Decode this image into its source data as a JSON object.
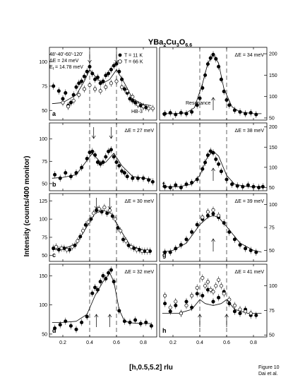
{
  "figure": {
    "title_main": "YBa",
    "title_sub1": "2",
    "title_mid": "Cu",
    "title_sub2": "3",
    "title_end": "O",
    "title_sub3": "6.6",
    "xlabel": "[h,0.5,5.2] rlu",
    "ylabel": "Intensity (counts/400 monitor)",
    "caption_line1": "Figure 10",
    "caption_line2": "Dai et al.",
    "legend_info": [
      "48'-40'-60'-120'",
      "ΔE = 24 meV",
      "E",
      "f",
      " = 14.78 meV"
    ],
    "legend_series": [
      "T = 11 K",
      "T = 66 K"
    ],
    "instrument": "HB-3",
    "resonance_label": "Resonance"
  },
  "chart_data": [
    {
      "panel": "a",
      "type": "scatter",
      "energy_label": "ΔE = 24 meV",
      "xlim": [
        0.1,
        0.9
      ],
      "ylim": [
        40,
        115
      ],
      "yticks": [
        50,
        75,
        100
      ],
      "xticks": [
        0.2,
        0.4,
        0.6,
        0.8
      ],
      "dashed_x": [
        0.4,
        0.6
      ],
      "arrows_down": [
        0.4,
        0.6
      ],
      "series": [
        {
          "name": "T = 11 K",
          "marker": "filled",
          "x": [
            0.13,
            0.17,
            0.2,
            0.22,
            0.24,
            0.26,
            0.28,
            0.3,
            0.32,
            0.34,
            0.36,
            0.38,
            0.4,
            0.42,
            0.44,
            0.46,
            0.48,
            0.5,
            0.52,
            0.54,
            0.56,
            0.58,
            0.6,
            0.62,
            0.64,
            0.66,
            0.68,
            0.7,
            0.72,
            0.74,
            0.76,
            0.78,
            0.8,
            0.82
          ],
          "y": [
            75,
            70,
            62,
            68,
            55,
            58,
            66,
            74,
            78,
            80,
            85,
            90,
            95,
            88,
            82,
            84,
            78,
            80,
            86,
            88,
            92,
            96,
            98,
            90,
            82,
            72,
            68,
            62,
            60,
            58,
            56,
            55,
            54,
            53
          ]
        },
        {
          "name": "T = 66 K",
          "marker": "open",
          "x": [
            0.2,
            0.24,
            0.28,
            0.32,
            0.36,
            0.4,
            0.44,
            0.48,
            0.52,
            0.56,
            0.6,
            0.64,
            0.68,
            0.72,
            0.76,
            0.8,
            0.84,
            0.87
          ],
          "y": [
            58,
            54,
            60,
            66,
            72,
            76,
            72,
            70,
            74,
            78,
            80,
            74,
            70,
            64,
            56,
            54,
            52,
            52
          ]
        }
      ],
      "fit_x": [
        0.12,
        0.2,
        0.3,
        0.36,
        0.4,
        0.46,
        0.5,
        0.55,
        0.6,
        0.66,
        0.72,
        0.8,
        0.86
      ],
      "fit_y": [
        57,
        58,
        66,
        80,
        92,
        82,
        78,
        82,
        92,
        78,
        62,
        56,
        55
      ]
    },
    {
      "panel": "b",
      "type": "scatter",
      "energy_label": "ΔE = 27 meV",
      "xlim": [
        0.1,
        0.9
      ],
      "ylim": [
        42,
        118
      ],
      "yticks": [
        50,
        75,
        100
      ],
      "xticks": [
        0.2,
        0.4,
        0.6,
        0.8
      ],
      "dashed_x": [
        0.4,
        0.6
      ],
      "arrows_down": [
        0.43,
        0.56
      ],
      "series": [
        {
          "name": "T = 11 K",
          "marker": "filled",
          "x": [
            0.14,
            0.18,
            0.22,
            0.26,
            0.3,
            0.34,
            0.38,
            0.4,
            0.42,
            0.44,
            0.46,
            0.48,
            0.5,
            0.52,
            0.54,
            0.56,
            0.58,
            0.6,
            0.62,
            0.64,
            0.66,
            0.68,
            0.72,
            0.76,
            0.8,
            0.84,
            0.87
          ],
          "y": [
            60,
            56,
            62,
            58,
            62,
            68,
            78,
            85,
            86,
            82,
            74,
            72,
            74,
            80,
            86,
            88,
            80,
            74,
            70,
            64,
            62,
            58,
            56,
            56,
            56,
            54,
            52
          ]
        }
      ],
      "fit_x": [
        0.12,
        0.2,
        0.3,
        0.36,
        0.42,
        0.48,
        0.5,
        0.52,
        0.58,
        0.64,
        0.72,
        0.8,
        0.86
      ],
      "fit_y": [
        56,
        57,
        60,
        72,
        84,
        74,
        73,
        74,
        84,
        70,
        58,
        56,
        55
      ]
    },
    {
      "panel": "c",
      "type": "scatter",
      "energy_label": "ΔE = 30 meV",
      "xlim": [
        0.1,
        0.9
      ],
      "ylim": [
        42,
        135
      ],
      "yticks": [
        50,
        75,
        100,
        125
      ],
      "xticks": [
        0.2,
        0.4,
        0.6,
        0.8
      ],
      "dashed_x": [
        0.4,
        0.6
      ],
      "arrows_down": [
        0.45,
        0.55
      ],
      "series": [
        {
          "name": "T = 11 K",
          "marker": "filled",
          "x": [
            0.13,
            0.17,
            0.21,
            0.25,
            0.29,
            0.33,
            0.37,
            0.41,
            0.45,
            0.49,
            0.53,
            0.57,
            0.61,
            0.65,
            0.69,
            0.73,
            0.77,
            0.81,
            0.85
          ],
          "y": [
            60,
            58,
            60,
            58,
            64,
            76,
            92,
            100,
            112,
            110,
            108,
            104,
            88,
            72,
            64,
            60,
            58,
            56,
            56
          ]
        },
        {
          "name": "T = 66 K",
          "marker": "open",
          "x": [
            0.15,
            0.19,
            0.23,
            0.27,
            0.31,
            0.35,
            0.39,
            0.43,
            0.47,
            0.51,
            0.55,
            0.59,
            0.63,
            0.67,
            0.71,
            0.75,
            0.79,
            0.83
          ],
          "y": [
            62,
            60,
            58,
            62,
            70,
            84,
            96,
            108,
            114,
            116,
            112,
            100,
            84,
            70,
            62,
            58,
            56,
            56
          ]
        }
      ],
      "fit_x": [
        0.12,
        0.2,
        0.3,
        0.38,
        0.44,
        0.5,
        0.56,
        0.62,
        0.7,
        0.8,
        0.86
      ],
      "fit_y": [
        58,
        59,
        66,
        90,
        108,
        112,
        108,
        88,
        64,
        57,
        56
      ]
    },
    {
      "panel": "d",
      "type": "scatter",
      "energy_label": "ΔE = 32 meV",
      "xlim": [
        0.1,
        0.9
      ],
      "ylim": [
        45,
        170
      ],
      "yticks": [
        50,
        100,
        150
      ],
      "xticks": [
        0.2,
        0.4,
        0.6,
        0.8
      ],
      "dashed_x": [
        0.4,
        0.6
      ],
      "arrows_up": [
        0.45,
        0.55
      ],
      "series": [
        {
          "name": "T = 11 K",
          "marker": "filled",
          "x": [
            0.14,
            0.18,
            0.22,
            0.26,
            0.3,
            0.34,
            0.38,
            0.42,
            0.44,
            0.46,
            0.48,
            0.5,
            0.52,
            0.54,
            0.56,
            0.58,
            0.62,
            0.66,
            0.7,
            0.74,
            0.78,
            0.82,
            0.86
          ],
          "y": [
            60,
            66,
            72,
            64,
            58,
            70,
            80,
            120,
            130,
            126,
            140,
            150,
            145,
            155,
            160,
            140,
            90,
            72,
            70,
            74,
            68,
            70,
            64
          ]
        }
      ],
      "fit_x": [
        0.12,
        0.2,
        0.3,
        0.38,
        0.44,
        0.5,
        0.55,
        0.58,
        0.62,
        0.66,
        0.72,
        0.8,
        0.86
      ],
      "fit_y": [
        70,
        70,
        72,
        84,
        116,
        140,
        155,
        140,
        92,
        72,
        69,
        68,
        68
      ]
    },
    {
      "panel": "e",
      "type": "scatter",
      "energy_label": "ΔE = 34 meV",
      "xlim": [
        0.1,
        0.9
      ],
      "ylim": [
        45,
        215
      ],
      "yticks": [
        50,
        100,
        150,
        200
      ],
      "xticks": [
        0.2,
        0.4,
        0.6,
        0.8
      ],
      "dashed_x": [
        0.4,
        0.6
      ],
      "arrows_up": [
        0.5
      ],
      "series": [
        {
          "name": "T = 11 K",
          "marker": "filled",
          "x": [
            0.14,
            0.18,
            0.22,
            0.26,
            0.3,
            0.34,
            0.38,
            0.4,
            0.42,
            0.44,
            0.46,
            0.48,
            0.5,
            0.52,
            0.54,
            0.56,
            0.58,
            0.6,
            0.62,
            0.66,
            0.7,
            0.74,
            0.78,
            0.82
          ],
          "y": [
            60,
            62,
            58,
            62,
            60,
            64,
            80,
            96,
            120,
            150,
            176,
            190,
            198,
            188,
            170,
            140,
            112,
            92,
            80,
            68,
            64,
            60,
            62,
            58
          ]
        }
      ],
      "fit_x": [
        0.12,
        0.22,
        0.3,
        0.36,
        0.42,
        0.46,
        0.5,
        0.54,
        0.58,
        0.64,
        0.7,
        0.8,
        0.86
      ],
      "fit_y": [
        60,
        60,
        62,
        74,
        130,
        178,
        198,
        178,
        118,
        76,
        64,
        60,
        60
      ]
    },
    {
      "panel": "f",
      "type": "scatter",
      "energy_label": "ΔE = 38 meV",
      "xlim": [
        0.1,
        0.9
      ],
      "ylim": [
        42,
        210
      ],
      "yticks": [
        50,
        100,
        150,
        200
      ],
      "xticks": [
        0.2,
        0.4,
        0.6,
        0.8
      ],
      "dashed_x": [
        0.4,
        0.6
      ],
      "arrows_up": [
        0.5
      ],
      "series": [
        {
          "name": "T = 11 K",
          "marker": "filled",
          "x": [
            0.14,
            0.18,
            0.22,
            0.26,
            0.3,
            0.34,
            0.38,
            0.42,
            0.44,
            0.46,
            0.48,
            0.5,
            0.52,
            0.54,
            0.56,
            0.6,
            0.64,
            0.68,
            0.72,
            0.76,
            0.8,
            0.84,
            0.87
          ],
          "y": [
            52,
            50,
            56,
            50,
            58,
            62,
            70,
            96,
            112,
            130,
            140,
            136,
            120,
            108,
            90,
            70,
            58,
            54,
            52,
            56,
            52,
            50,
            52
          ]
        }
      ],
      "fit_x": [
        0.12,
        0.24,
        0.34,
        0.4,
        0.46,
        0.5,
        0.54,
        0.6,
        0.66,
        0.76,
        0.86
      ],
      "fit_y": [
        52,
        52,
        58,
        80,
        128,
        140,
        128,
        80,
        58,
        52,
        52
      ]
    },
    {
      "panel": "g",
      "type": "scatter",
      "energy_label": "ΔE = 39 meV",
      "xlim": [
        0.1,
        0.9
      ],
      "ylim": [
        38,
        112
      ],
      "yticks": [
        50,
        75,
        100
      ],
      "xticks": [
        0.2,
        0.4,
        0.6,
        0.8
      ],
      "dashed_x": [
        0.4,
        0.6
      ],
      "arrows_up": [
        0.5
      ],
      "series": [
        {
          "name": "T = 11 K",
          "marker": "filled",
          "x": [
            0.14,
            0.18,
            0.22,
            0.26,
            0.3,
            0.34,
            0.38,
            0.42,
            0.46,
            0.5,
            0.54,
            0.58,
            0.62,
            0.66,
            0.7,
            0.74,
            0.78,
            0.82
          ],
          "y": [
            48,
            48,
            52,
            56,
            62,
            70,
            78,
            84,
            88,
            90,
            86,
            80,
            70,
            62,
            56,
            52,
            50,
            48
          ]
        },
        {
          "name": "T = 66 K",
          "marker": "open",
          "x": [
            0.42,
            0.46,
            0.5,
            0.54
          ],
          "y": [
            86,
            92,
            94,
            88
          ]
        }
      ],
      "fit_x": [
        0.12,
        0.2,
        0.3,
        0.4,
        0.46,
        0.5,
        0.54,
        0.6,
        0.7,
        0.8,
        0.86
      ],
      "fit_y": [
        48,
        50,
        58,
        78,
        86,
        88,
        86,
        76,
        58,
        50,
        48
      ]
    },
    {
      "panel": "h",
      "type": "scatter",
      "energy_label": "ΔE = 41 meV",
      "xlim": [
        0.1,
        0.9
      ],
      "ylim": [
        48,
        122
      ],
      "yticks": [
        50,
        75,
        100
      ],
      "xticks": [
        0.2,
        0.4,
        0.6,
        0.8
      ],
      "dashed_x": [
        0.4,
        0.6
      ],
      "arrows_up": [
        0.4,
        0.6
      ],
      "series": [
        {
          "name": "T = 11 K",
          "marker": "filled",
          "x": [
            0.14,
            0.18,
            0.22,
            0.26,
            0.3,
            0.34,
            0.38,
            0.42,
            0.46,
            0.5,
            0.54,
            0.58,
            0.62,
            0.66,
            0.7,
            0.74,
            0.78,
            0.82
          ],
          "y": [
            82,
            74,
            80,
            72,
            84,
            78,
            92,
            90,
            96,
            84,
            88,
            94,
            82,
            74,
            72,
            76,
            70,
            70
          ]
        },
        {
          "name": "T = 66 K",
          "marker": "open",
          "x": [
            0.14,
            0.18,
            0.22,
            0.26,
            0.3,
            0.34,
            0.38,
            0.42,
            0.44,
            0.46,
            0.48,
            0.5,
            0.52,
            0.54,
            0.56,
            0.58,
            0.62,
            0.66,
            0.7,
            0.74,
            0.78
          ],
          "y": [
            90,
            78,
            84,
            72,
            80,
            90,
            98,
            108,
            100,
            104,
            96,
            94,
            100,
            106,
            100,
            92,
            86,
            80,
            76,
            74,
            72
          ]
        }
      ],
      "fit_x": [
        0.12,
        0.24,
        0.34,
        0.4,
        0.44,
        0.5,
        0.56,
        0.6,
        0.66,
        0.76,
        0.86
      ],
      "fit_y": [
        72,
        72,
        76,
        86,
        82,
        80,
        82,
        86,
        76,
        72,
        72
      ]
    }
  ]
}
